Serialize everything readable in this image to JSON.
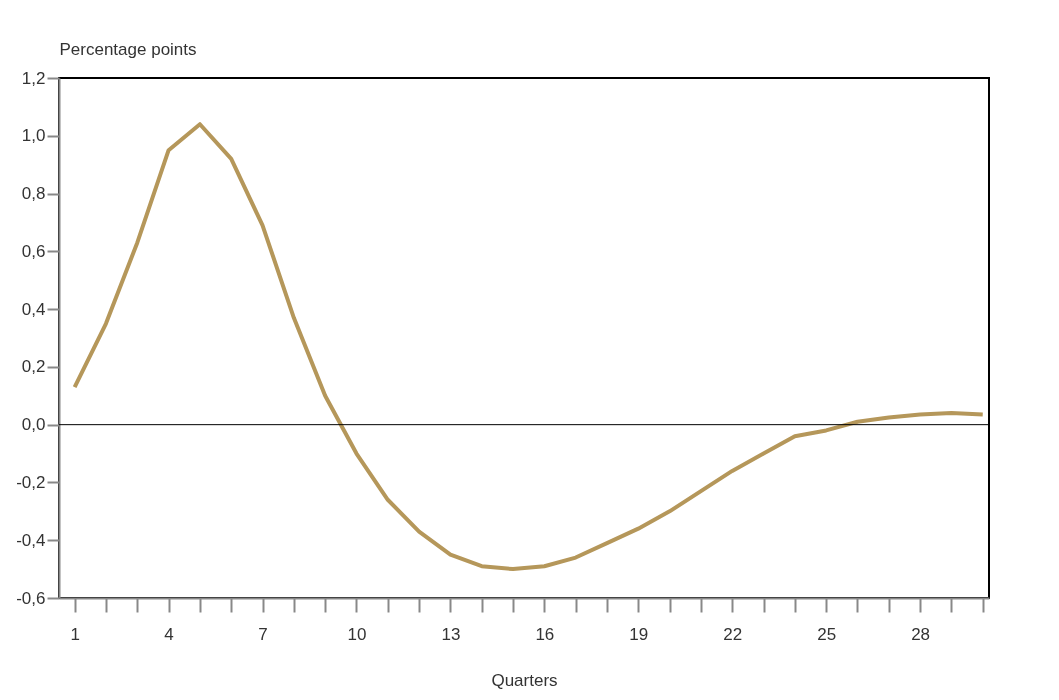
{
  "chart_data": {
    "type": "line",
    "ylabel": "Percentage points",
    "xlabel": "Quarters",
    "x": [
      1,
      2,
      3,
      4,
      5,
      6,
      7,
      8,
      9,
      10,
      11,
      12,
      13,
      14,
      15,
      16,
      17,
      18,
      19,
      20,
      21,
      22,
      23,
      24,
      25,
      26,
      27,
      28,
      29,
      30
    ],
    "series": [
      {
        "color": "#b5975a",
        "values": [
          0.13,
          0.35,
          0.63,
          0.95,
          1.04,
          0.92,
          0.69,
          0.37,
          0.1,
          -0.1,
          -0.26,
          -0.37,
          -0.45,
          -0.49,
          -0.5,
          -0.49,
          -0.46,
          -0.41,
          -0.36,
          -0.3,
          -0.23,
          -0.16,
          -0.1,
          -0.04,
          -0.02,
          0.01,
          0.025,
          0.035,
          0.04,
          0.035
        ]
      }
    ],
    "xlim": [
      0.5,
      30.2
    ],
    "xticks": [
      1,
      {
        "value": 2,
        "label": null
      },
      {
        "value": 3,
        "label": null
      },
      4,
      {
        "value": 5,
        "label": null
      },
      {
        "value": 6,
        "label": null
      },
      7,
      {
        "value": 8,
        "label": null
      },
      {
        "value": 9,
        "label": null
      },
      10,
      {
        "value": 11,
        "label": null
      },
      {
        "value": 12,
        "label": null
      },
      13,
      {
        "value": 14,
        "label": null
      },
      {
        "value": 15,
        "label": null
      },
      16,
      {
        "value": 17,
        "label": null
      },
      {
        "value": 18,
        "label": null
      },
      19,
      {
        "value": 20,
        "label": null
      },
      {
        "value": 21,
        "label": null
      },
      22,
      {
        "value": 23,
        "label": null
      },
      {
        "value": 24,
        "label": null
      },
      25,
      {
        "value": 26,
        "label": null
      },
      {
        "value": 27,
        "label": null
      },
      28,
      {
        "value": 29,
        "label": null
      },
      {
        "value": 30,
        "label": null
      }
    ],
    "ylim": [
      -0.6,
      1.2
    ],
    "yticks": [
      {
        "value": -0.6,
        "label": "-0,6"
      },
      {
        "value": -0.4,
        "label": "-0,4"
      },
      {
        "value": -0.2,
        "label": "-0,2"
      },
      {
        "value": 0,
        "label": "0,0"
      },
      {
        "value": 0.2,
        "label": "0,2"
      },
      {
        "value": 0.4,
        "label": "0,4"
      },
      {
        "value": 0.6,
        "label": "0,6"
      },
      {
        "value": 0.8,
        "label": "0,8"
      },
      {
        "value": 1.0,
        "label": "1,0"
      },
      {
        "value": 1.2,
        "label": "1,2"
      }
    ],
    "ref_lines": [
      {
        "axis": "y",
        "value": 0,
        "color": "#000000"
      }
    ],
    "grid": false,
    "marker": "none",
    "line_style": "solid"
  }
}
